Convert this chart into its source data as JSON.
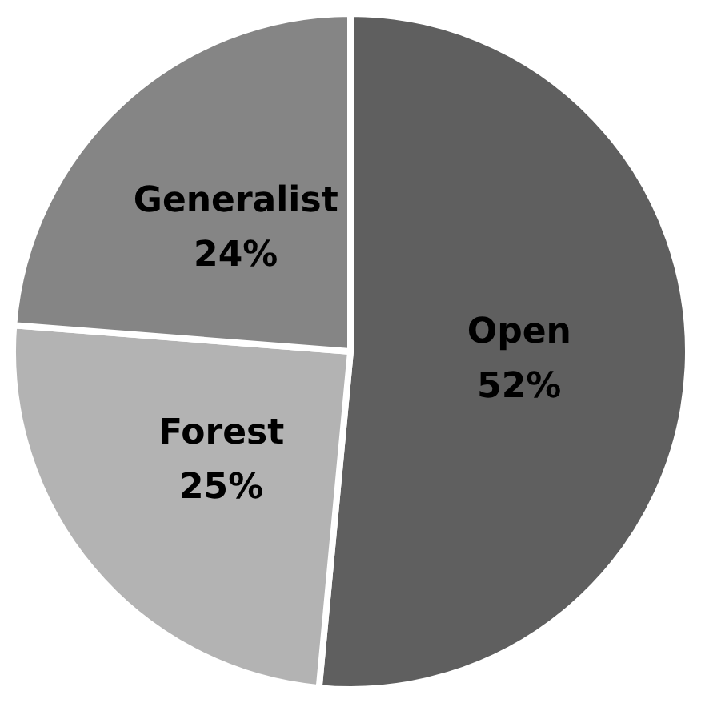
{
  "chart_data": {
    "type": "pie",
    "categories": [
      "Open",
      "Forest",
      "Generalist"
    ],
    "values": [
      52,
      25,
      24
    ],
    "value_labels": [
      "52%",
      "25%",
      "24%"
    ],
    "colors": [
      "#5f5f5f",
      "#b3b3b3",
      "#858585"
    ]
  }
}
